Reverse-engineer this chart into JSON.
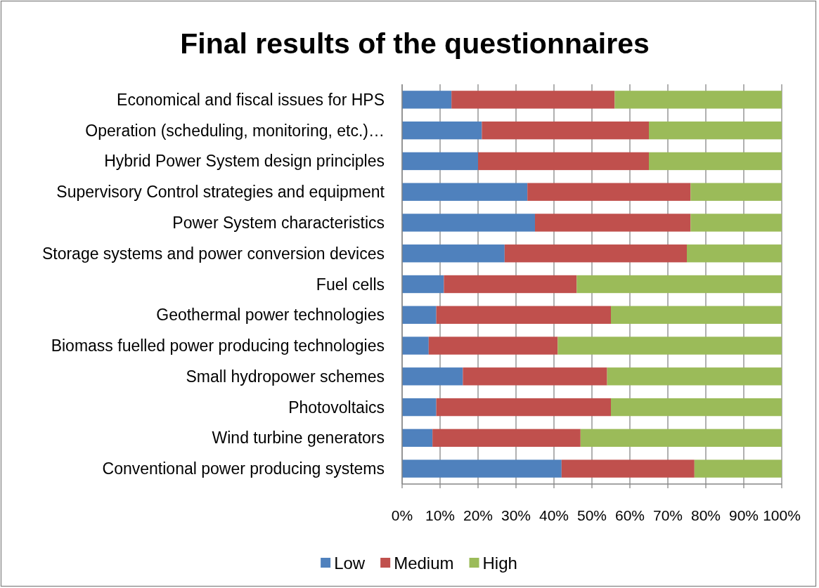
{
  "chart_data": {
    "type": "bar",
    "orientation": "horizontal",
    "stacked": true,
    "title": "Final results of the questionnaires",
    "categories": [
      "Economical and fiscal issues for HPS",
      "Operation (scheduling, monitoring, etc.)…",
      "Hybrid Power System design principles",
      "Supervisory Control strategies and equipment",
      "Power System characteristics",
      "Storage systems and power conversion devices",
      "Fuel cells",
      "Geothermal power technologies",
      "Biomass fuelled power producing technologies",
      "Small hydropower schemes",
      "Photovoltaics",
      "Wind turbine generators",
      "Conventional power producing systems"
    ],
    "series": [
      {
        "name": "Low",
        "color": "#4f81bd",
        "values": [
          13,
          21,
          20,
          33,
          35,
          27,
          11,
          9,
          7,
          16,
          9,
          8,
          42
        ]
      },
      {
        "name": "Medium",
        "color": "#c0504d",
        "values": [
          43,
          44,
          45,
          43,
          41,
          48,
          35,
          46,
          34,
          38,
          46,
          39,
          35
        ]
      },
      {
        "name": "High",
        "color": "#9bbb59",
        "values": [
          44,
          35,
          35,
          24,
          24,
          25,
          54,
          45,
          59,
          46,
          45,
          53,
          23
        ]
      }
    ],
    "xlim": [
      0,
      100
    ],
    "xticks": [
      {
        "value": 0,
        "label": "0%"
      },
      {
        "value": 10,
        "label": "10%"
      },
      {
        "value": 20,
        "label": "20%"
      },
      {
        "value": 30,
        "label": "30%"
      },
      {
        "value": 40,
        "label": "40%"
      },
      {
        "value": 50,
        "label": "50%"
      },
      {
        "value": 60,
        "label": "60%"
      },
      {
        "value": 70,
        "label": "70%"
      },
      {
        "value": 80,
        "label": "80%"
      },
      {
        "value": 90,
        "label": "90%"
      },
      {
        "value": 100,
        "label": "100%"
      }
    ],
    "grid": "x",
    "legend": "bottom"
  }
}
